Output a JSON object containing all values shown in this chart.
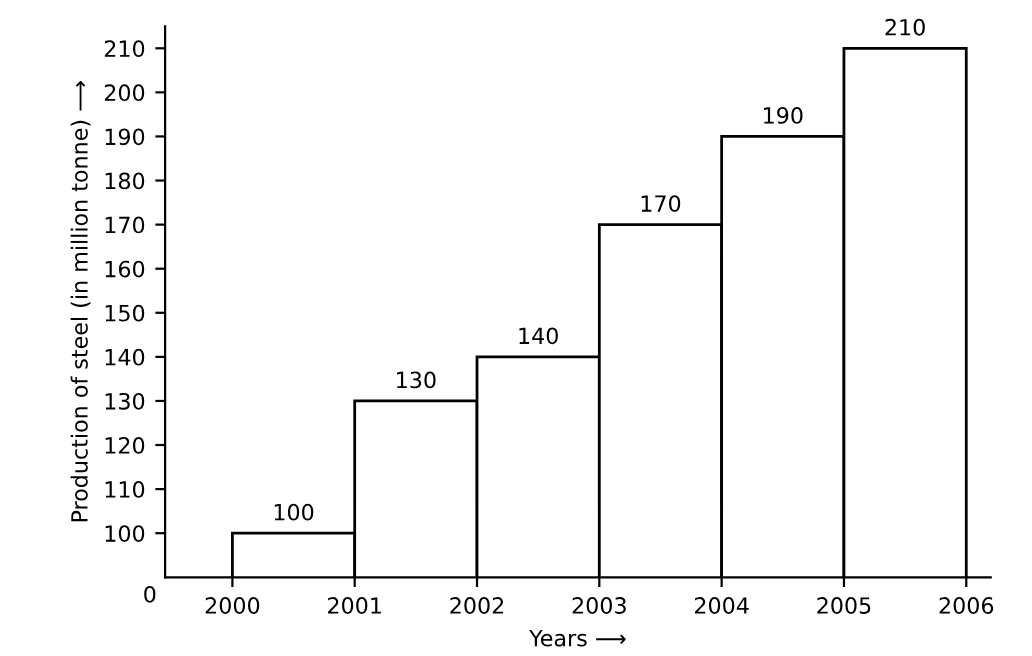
{
  "chart_data": {
    "type": "histogram",
    "xlabel": "Years ⟶",
    "ylabel": "Production of steel (in million tonne) ⟶",
    "bins": [
      2000,
      2001,
      2002,
      2003,
      2004,
      2005,
      2006
    ],
    "values": [
      100,
      130,
      140,
      170,
      190,
      210
    ],
    "color": "#ffffff",
    "xlim": [
      1999.45,
      2006.2
    ],
    "ylim": [
      90,
      215
    ],
    "xticks": [
      2000,
      2001,
      2002,
      2003,
      2004,
      2005,
      2006
    ],
    "yticks": [
      100,
      110,
      120,
      130,
      140,
      150,
      160,
      170,
      180,
      190,
      200,
      210
    ],
    "annotations": [
      "0"
    ],
    "data_labels": true,
    "grid": false
  }
}
